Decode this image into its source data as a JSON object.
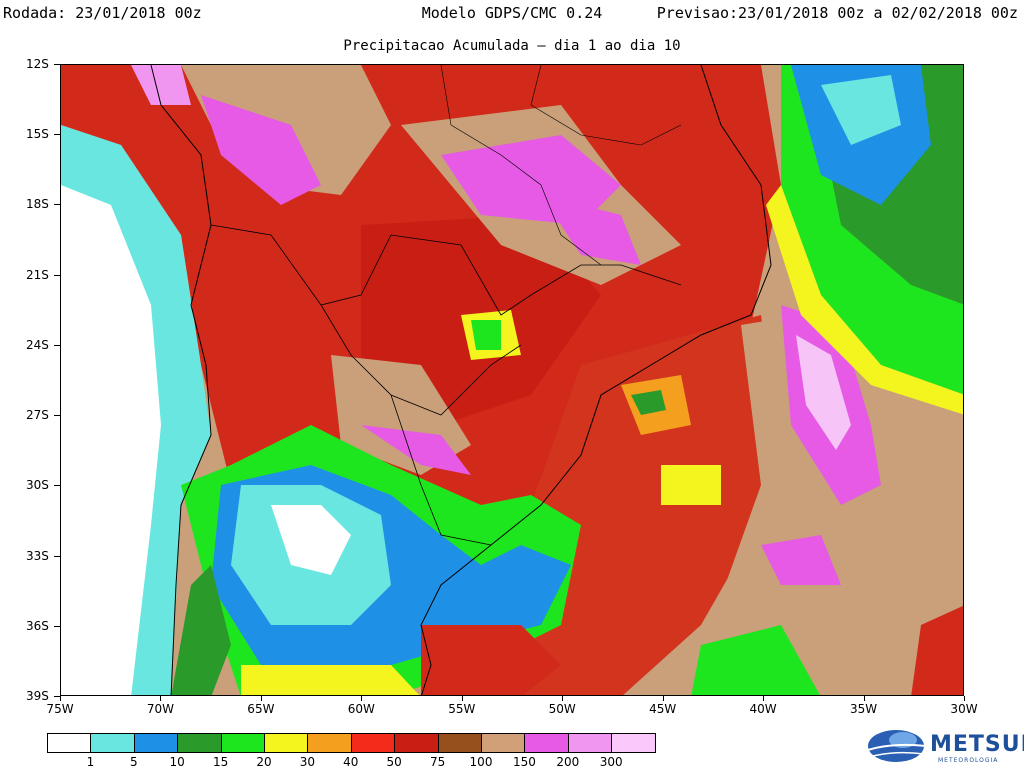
{
  "header": {
    "rodada": "Rodada: 23/01/2018 00z",
    "model": "Modelo GDPS/CMC 0.24",
    "previsao": "Previsao:23/01/2018 00z a 02/02/2018 00z",
    "subtitle": "Precipitacao Acumulada – dia 1 ao dia 10"
  },
  "lat_labels": [
    "12S",
    "15S",
    "18S",
    "21S",
    "24S",
    "27S",
    "30S",
    "33S",
    "36S",
    "39S"
  ],
  "lon_labels": [
    "75W",
    "70W",
    "65W",
    "60W",
    "55W",
    "50W",
    "45W",
    "40W",
    "35W",
    "30W"
  ],
  "legend": {
    "labels": [
      "1",
      "5",
      "10",
      "15",
      "20",
      "30",
      "40",
      "50",
      "75",
      "100",
      "150",
      "200",
      "300"
    ],
    "colors": [
      "#ffffff",
      "#6ae6e0",
      "#1e90e6",
      "#2a9a2a",
      "#1ee61e",
      "#f4f41e",
      "#f4a01e",
      "#f42a1a",
      "#c81e14",
      "#96501e",
      "#d2a078",
      "#e65ae6",
      "#f096f0",
      "#fac8fa"
    ]
  },
  "logo": {
    "name": "METSUL",
    "sub": "METEOROLOGIA"
  }
}
